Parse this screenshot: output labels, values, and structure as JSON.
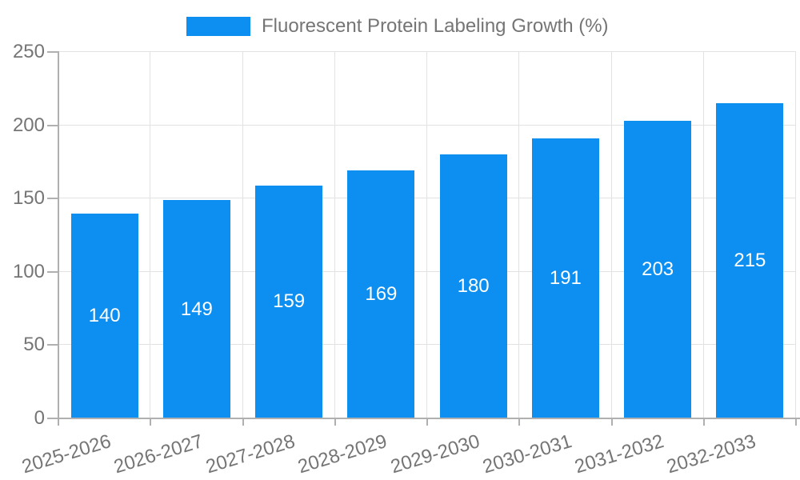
{
  "chart_data": {
    "type": "bar",
    "title": "Fluorescent Protein Labeling Growth (%)",
    "legend_entries": [
      "Fluorescent Protein Labeling Growth (%)"
    ],
    "legend_position": "top-center",
    "categories": [
      "2025-2026",
      "2026-2027",
      "2027-2028",
      "2028-2029",
      "2029-2030",
      "2030-2031",
      "2031-2032",
      "2032-2033"
    ],
    "values": [
      140,
      149,
      159,
      169,
      180,
      191,
      203,
      215
    ],
    "value_labels_shown": true,
    "xlabel": "",
    "ylabel": "",
    "ylim": [
      0,
      250
    ],
    "y_ticks": [
      0,
      50,
      100,
      150,
      200,
      250
    ],
    "grid": "horizontal and vertical light gray gridlines",
    "x_tick_label_rotation_deg": -17
  },
  "colors": {
    "bar": "#0d8ff2",
    "value_text": "#ffffff",
    "grid": "#e2e2e2",
    "axis": "#b0b0b0",
    "tick_text": "#757575",
    "legend_text": "#757575",
    "background": "#ffffff"
  }
}
